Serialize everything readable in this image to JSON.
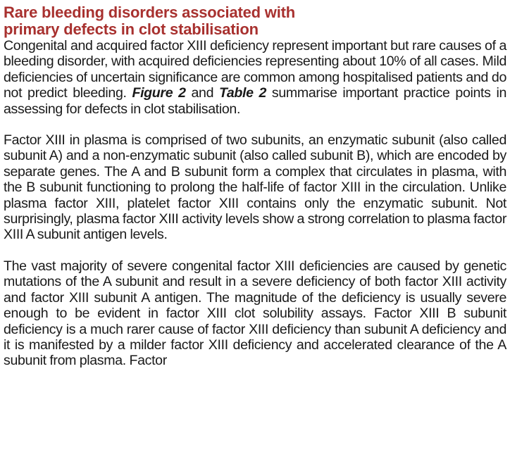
{
  "heading": {
    "line1": "Rare bleeding disorders associated with",
    "line2": "primary defects in clot stabilisation"
  },
  "paragraphs": {
    "p1": {
      "text_before": "Congenital and acquired factor XIII deficiency represent important but rare causes of a bleeding disorder, with acquired deficiencies representing about 10% of all cases. Mild deficiencies of uncertain significance are common among hospitalised patients and do not predict bleeding. ",
      "figure_ref": "Figure 2",
      "text_middle": " and ",
      "table_ref": "Table 2",
      "text_after": " summarise important practice points in assessing for defects in clot stabilisation."
    },
    "p2": "Factor XIII in plasma is comprised of two subunits, an enzymatic subunit (also called subunit A) and a non-enzymatic subunit (also called subunit B), which are encoded by separate genes. The A and B subunit form a complex that circulates in plasma, with the B subunit functioning to prolong the half-life of factor XIII in the circulation. Unlike plasma factor XIII, platelet factor XIII contains only the enzymatic subunit. Not surprisingly, plasma factor XIII activity levels show a strong correlation to plasma factor XIII A subunit antigen levels.",
    "p3": "The vast majority of severe congenital factor XIII deficiencies are caused by genetic mutations of the A subunit and result in a severe deficiency of both factor XIII activity and factor XIII subunit A antigen. The magnitude of the deficiency is usually severe enough to be evident in factor XIII clot solubility assays. Factor XIII B subunit deficiency is a much rarer cause of factor XIII deficiency than subunit A deficiency and it is manifested by a milder factor XIII deficiency and accelerated clearance of the A subunit from plasma. Factor"
  },
  "colors": {
    "heading": "#a8312f",
    "body_text": "#1a1a1a"
  }
}
